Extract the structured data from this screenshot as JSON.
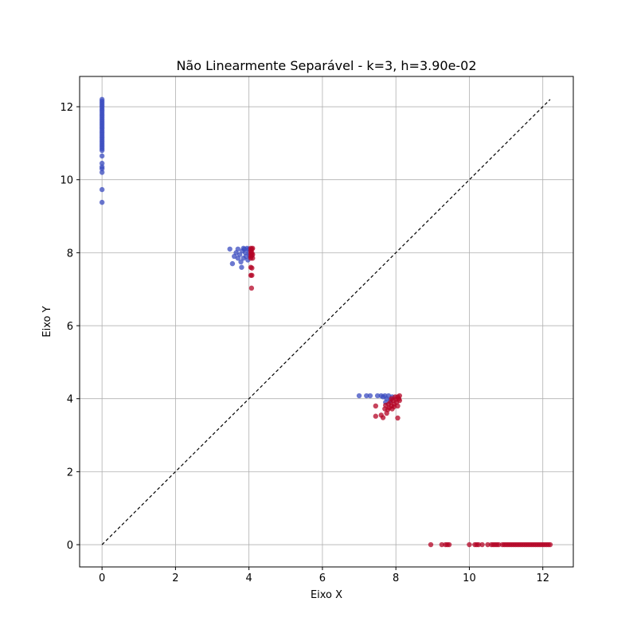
{
  "chart_data": {
    "type": "scatter",
    "title": "Não Linearmente Separável - k=3, h=3.90e-02",
    "xlabel": "Eixo X",
    "ylabel": "Eixo Y",
    "xlim": [
      -0.61,
      12.83
    ],
    "ylim": [
      -0.61,
      12.83
    ],
    "xticks": [
      0,
      2,
      4,
      6,
      8,
      10,
      12
    ],
    "yticks": [
      0,
      2,
      4,
      6,
      8,
      10,
      12
    ],
    "grid": true,
    "legend": "none",
    "colors": {
      "class_0": "#3b4cc0",
      "class_1": "#b40426",
      "reference_line": "#000000"
    },
    "reference_line": {
      "x": [
        0,
        12.2
      ],
      "y": [
        0,
        12.2
      ],
      "style": "dashed"
    },
    "series": [
      {
        "points": [
          [
            0,
            12.2
          ],
          [
            0,
            12.15
          ],
          [
            0,
            12.1
          ],
          [
            0,
            12.05
          ],
          [
            0,
            12.0
          ],
          [
            0,
            11.95
          ],
          [
            0,
            11.9
          ],
          [
            0,
            11.85
          ],
          [
            0,
            11.8
          ],
          [
            0,
            11.75
          ],
          [
            0,
            11.7
          ],
          [
            0,
            11.65
          ],
          [
            0,
            11.6
          ],
          [
            0,
            11.55
          ],
          [
            0,
            11.5
          ],
          [
            0,
            11.45
          ],
          [
            0,
            11.4
          ],
          [
            0,
            11.35
          ],
          [
            0,
            11.3
          ],
          [
            0,
            11.25
          ],
          [
            0,
            11.2
          ],
          [
            0,
            11.15
          ],
          [
            0,
            11.1
          ],
          [
            0,
            11.05
          ],
          [
            0,
            11.0
          ],
          [
            0,
            10.95
          ],
          [
            0,
            10.9
          ],
          [
            0,
            10.85
          ],
          [
            0,
            10.8
          ],
          [
            0,
            10.65
          ],
          [
            0,
            10.45
          ],
          [
            0,
            10.35
          ],
          [
            0,
            10.3
          ],
          [
            0,
            10.2
          ],
          [
            0,
            9.73
          ],
          [
            0,
            9.38
          ],
          [
            3.48,
            8.1
          ],
          [
            3.6,
            7.9
          ],
          [
            3.55,
            7.7
          ],
          [
            3.65,
            8.0
          ],
          [
            3.7,
            8.1
          ],
          [
            3.75,
            7.95
          ],
          [
            3.78,
            7.75
          ],
          [
            3.8,
            7.6
          ],
          [
            3.82,
            8.05
          ],
          [
            3.85,
            7.85
          ],
          [
            3.88,
            8.1
          ],
          [
            3.9,
            8.0
          ],
          [
            3.92,
            7.9
          ],
          [
            3.95,
            8.12
          ],
          [
            3.97,
            7.8
          ],
          [
            4.0,
            8.1
          ],
          [
            4.0,
            8.0
          ],
          [
            4.02,
            7.92
          ],
          [
            3.7,
            7.85
          ],
          [
            3.85,
            8.12
          ],
          [
            7.0,
            4.08
          ],
          [
            7.2,
            4.08
          ],
          [
            7.3,
            4.08
          ],
          [
            7.5,
            4.08
          ],
          [
            7.6,
            4.08
          ],
          [
            7.65,
            4.05
          ],
          [
            7.7,
            4.08
          ],
          [
            7.75,
            4.0
          ],
          [
            7.8,
            4.08
          ],
          [
            7.85,
            3.95
          ],
          [
            7.9,
            4.05
          ],
          [
            7.72,
            3.9
          ]
        ]
      },
      {
        "points": [
          [
            4.05,
            8.12
          ],
          [
            4.05,
            8.05
          ],
          [
            4.05,
            7.98
          ],
          [
            4.05,
            7.9
          ],
          [
            4.05,
            7.85
          ],
          [
            4.08,
            8.1
          ],
          [
            4.08,
            8.0
          ],
          [
            4.08,
            7.92
          ],
          [
            4.1,
            7.85
          ],
          [
            4.05,
            7.6
          ],
          [
            4.08,
            7.58
          ],
          [
            4.05,
            7.38
          ],
          [
            4.08,
            7.38
          ],
          [
            4.07,
            7.03
          ],
          [
            4.1,
            8.12
          ],
          [
            4.1,
            7.95
          ],
          [
            7.45,
            3.8
          ],
          [
            7.45,
            3.52
          ],
          [
            7.6,
            3.55
          ],
          [
            7.65,
            3.48
          ],
          [
            7.7,
            3.72
          ],
          [
            7.72,
            3.82
          ],
          [
            7.75,
            3.6
          ],
          [
            7.78,
            3.7
          ],
          [
            7.8,
            3.85
          ],
          [
            7.82,
            3.75
          ],
          [
            7.85,
            3.9
          ],
          [
            7.88,
            3.8
          ],
          [
            7.9,
            3.72
          ],
          [
            7.92,
            3.95
          ],
          [
            7.95,
            3.85
          ],
          [
            7.98,
            4.05
          ],
          [
            8.0,
            3.98
          ],
          [
            8.02,
            3.9
          ],
          [
            8.05,
            4.05
          ],
          [
            8.05,
            3.8
          ],
          [
            8.08,
            4.0
          ],
          [
            8.1,
            3.95
          ],
          [
            8.1,
            4.08
          ],
          [
            7.95,
            3.78
          ],
          [
            7.88,
            4.0
          ],
          [
            8.05,
            3.47
          ],
          [
            8.95,
            0
          ],
          [
            9.25,
            0
          ],
          [
            9.35,
            0
          ],
          [
            9.4,
            0
          ],
          [
            9.45,
            0
          ],
          [
            10.0,
            0
          ],
          [
            10.15,
            0
          ],
          [
            10.2,
            0
          ],
          [
            10.25,
            0
          ],
          [
            10.35,
            0
          ],
          [
            10.5,
            0
          ],
          [
            10.6,
            0
          ],
          [
            10.65,
            0
          ],
          [
            10.7,
            0
          ],
          [
            10.75,
            0
          ],
          [
            10.8,
            0
          ],
          [
            10.9,
            0
          ],
          [
            10.95,
            0
          ],
          [
            11.0,
            0
          ],
          [
            11.05,
            0
          ],
          [
            11.1,
            0
          ],
          [
            11.15,
            0
          ],
          [
            11.2,
            0
          ],
          [
            11.25,
            0
          ],
          [
            11.3,
            0
          ],
          [
            11.35,
            0
          ],
          [
            11.4,
            0
          ],
          [
            11.45,
            0
          ],
          [
            11.5,
            0
          ],
          [
            11.55,
            0
          ],
          [
            11.6,
            0
          ],
          [
            11.65,
            0
          ],
          [
            11.7,
            0
          ],
          [
            11.75,
            0
          ],
          [
            11.8,
            0
          ],
          [
            11.85,
            0
          ],
          [
            11.9,
            0
          ],
          [
            11.95,
            0
          ],
          [
            12.0,
            0
          ],
          [
            12.05,
            0
          ],
          [
            12.1,
            0
          ],
          [
            12.15,
            0
          ],
          [
            12.2,
            0
          ]
        ]
      }
    ]
  }
}
